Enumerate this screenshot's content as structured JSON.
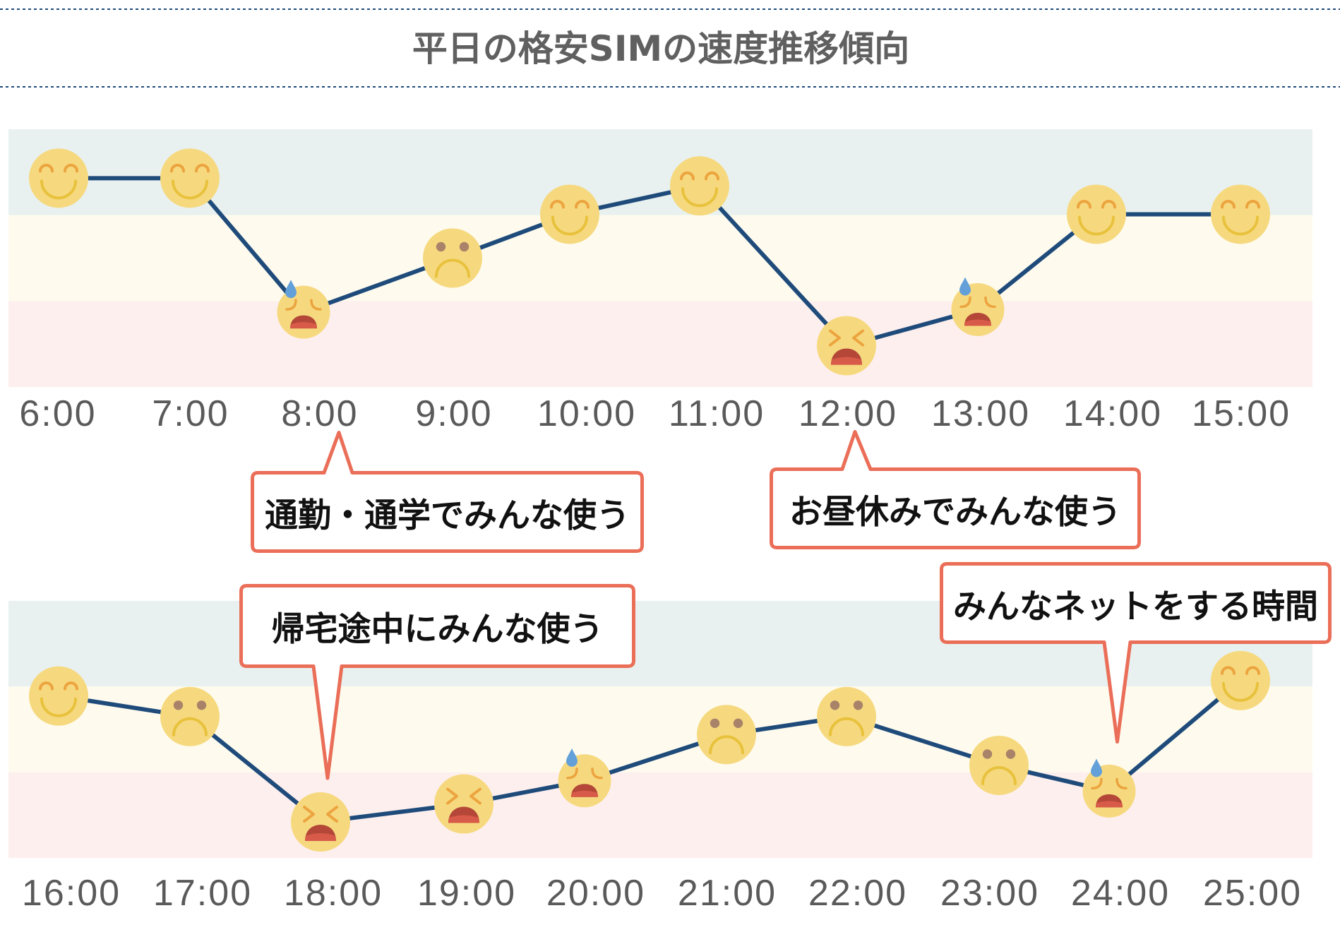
{
  "header": {
    "title": "平日の格安SIMの速度推移傾向"
  },
  "colors": {
    "divider": "#1f4b7b",
    "line": "#1f4b7b",
    "callout_border": "#ea6e58",
    "callout_fill": "#ffffff",
    "title": "#606060",
    "label": "#5a5a5a",
    "callout_text": "#111111",
    "face": "#f6d97f",
    "eye": "#eca43f",
    "mouth_line": "#e8c23d",
    "pupil": "#a88369",
    "mouth": "#b44738",
    "tongue": "#d85a48",
    "sweat_drop": "#63a0d9"
  },
  "chart_data": [
    {
      "type": "line",
      "title": "平日の格安SIMの速度推移傾向",
      "xlabel": "",
      "ylabel": "",
      "ylim": [
        0,
        100
      ],
      "grid": false,
      "legend": null,
      "categories": [
        "6:00",
        "7:00",
        "8:00",
        "9:00",
        "10:00",
        "11:00",
        "12:00",
        "13:00",
        "14:00",
        "15:00"
      ],
      "values": [
        81,
        81,
        29,
        50,
        67,
        78,
        16,
        30,
        67,
        67
      ],
      "markers": [
        "happy-face",
        "happy-face",
        "sweat-face",
        "sad-face",
        "happy-face",
        "happy-face",
        "distressed-face",
        "sweat-face",
        "happy-face",
        "happy-face"
      ],
      "bands": [
        {
          "level": "high",
          "from": 66.7,
          "to": 100,
          "color": "#e8f1ef"
        },
        {
          "level": "medium",
          "from": 33.3,
          "to": 66.7,
          "color": "#fefbee"
        },
        {
          "level": "low",
          "from": 0,
          "to": 33.3,
          "color": "#fdefee"
        }
      ],
      "annotations": [
        {
          "text": "通勤・通学でみんな使う",
          "target": "8:00"
        },
        {
          "text": "お昼休みでみんな使う",
          "target": "12:00"
        }
      ]
    },
    {
      "type": "line",
      "title": "平日の格安SIMの速度推移傾向",
      "xlabel": "",
      "ylabel": "",
      "ylim": [
        0,
        100
      ],
      "grid": false,
      "legend": null,
      "categories": [
        "16:00",
        "17:00",
        "18:00",
        "19:00",
        "20:00",
        "21:00",
        "22:00",
        "23:00",
        "24:00",
        "25:00"
      ],
      "values": [
        63,
        55,
        14,
        21,
        30,
        48,
        55,
        36,
        26,
        69
      ],
      "markers": [
        "happy-face",
        "sad-face",
        "distressed-face",
        "distressed-face",
        "sweat-face",
        "sad-face",
        "sad-face",
        "sad-face",
        "sweat-face",
        "happy-face"
      ],
      "bands": [
        {
          "level": "high",
          "from": 66.7,
          "to": 100,
          "color": "#e8f1ef"
        },
        {
          "level": "medium",
          "from": 33.3,
          "to": 66.7,
          "color": "#fefbee"
        },
        {
          "level": "low",
          "from": 0,
          "to": 33.3,
          "color": "#fdefee"
        }
      ],
      "annotations": [
        {
          "text": "帰宅途中にみんな使う",
          "target": "18:00"
        },
        {
          "text": "みんなネットをする時間",
          "target": "24:00"
        }
      ]
    }
  ]
}
